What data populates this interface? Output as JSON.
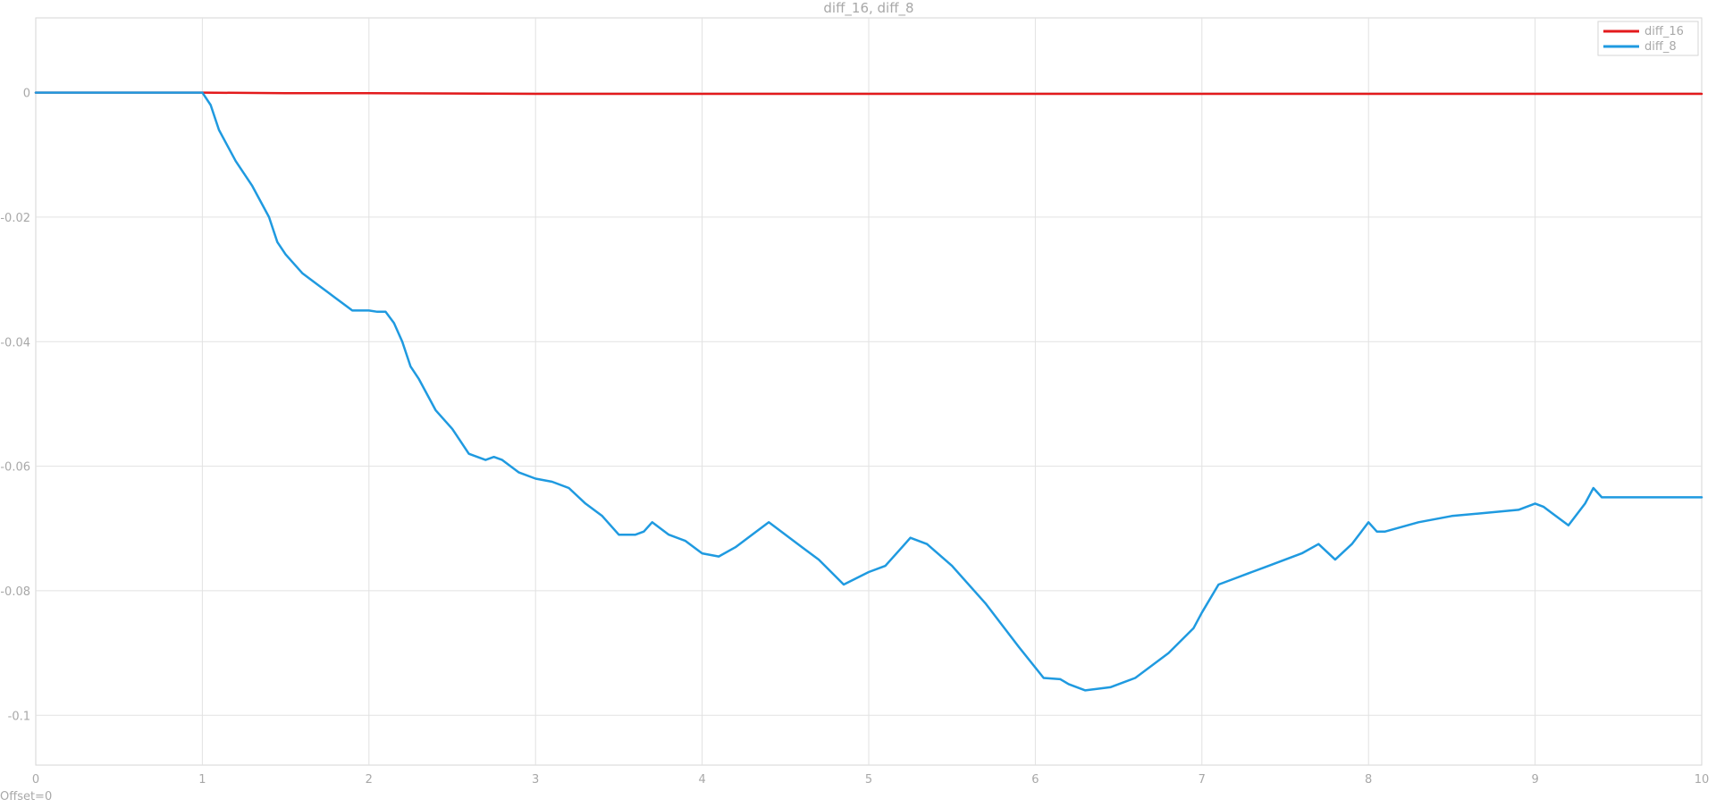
{
  "chart_data": {
    "type": "line",
    "title": "diff_16, diff_8",
    "xlabel": "",
    "ylabel": "",
    "xlim": [
      0,
      10
    ],
    "ylim": [
      -0.108,
      0.012
    ],
    "grid": true,
    "legend_position": "top-right",
    "x_ticks": [
      "0",
      "1",
      "2",
      "3",
      "4",
      "5",
      "6",
      "7",
      "8",
      "9",
      "10"
    ],
    "y_ticks": [
      "0",
      "-0.02",
      "-0.04",
      "-0.06",
      "-0.08",
      "-0.1"
    ],
    "series": [
      {
        "name": "diff_16",
        "color": "#e31a1c",
        "x": [
          0,
          1,
          1.5,
          2,
          3,
          4,
          5,
          6,
          7,
          8,
          9,
          10
        ],
        "y": [
          0,
          0,
          -0.0001,
          -0.0001,
          -0.0002,
          -0.0002,
          -0.0002,
          -0.0002,
          -0.0002,
          -0.0002,
          -0.0002,
          -0.0002
        ]
      },
      {
        "name": "diff_8",
        "color": "#1f9ae0",
        "x": [
          0,
          1,
          1.05,
          1.1,
          1.2,
          1.3,
          1.4,
          1.45,
          1.5,
          1.6,
          1.7,
          1.75,
          1.8,
          1.9,
          2.0,
          2.05,
          2.1,
          2.15,
          2.2,
          2.25,
          2.3,
          2.4,
          2.5,
          2.6,
          2.7,
          2.75,
          2.8,
          2.9,
          3.0,
          3.1,
          3.2,
          3.3,
          3.4,
          3.5,
          3.6,
          3.65,
          3.7,
          3.75,
          3.8,
          3.9,
          4.0,
          4.1,
          4.2,
          4.3,
          4.4,
          4.5,
          4.6,
          4.7,
          4.85,
          5.0,
          5.1,
          5.2,
          5.25,
          5.35,
          5.5,
          5.7,
          5.9,
          6.05,
          6.15,
          6.2,
          6.3,
          6.45,
          6.6,
          6.8,
          6.95,
          7.0,
          7.1,
          7.2,
          7.3,
          7.4,
          7.5,
          7.6,
          7.7,
          7.8,
          7.9,
          8.0,
          8.05,
          8.1,
          8.3,
          8.5,
          8.7,
          8.9,
          9.0,
          9.05,
          9.1,
          9.2,
          9.3,
          9.35,
          9.4,
          9.6,
          9.8,
          10.0
        ],
        "y": [
          0,
          0,
          -0.002,
          -0.006,
          -0.011,
          -0.015,
          -0.02,
          -0.024,
          -0.026,
          -0.029,
          -0.031,
          -0.032,
          -0.033,
          -0.035,
          -0.035,
          -0.0352,
          -0.0352,
          -0.037,
          -0.04,
          -0.044,
          -0.046,
          -0.051,
          -0.054,
          -0.058,
          -0.059,
          -0.0585,
          -0.059,
          -0.061,
          -0.062,
          -0.0625,
          -0.0635,
          -0.066,
          -0.068,
          -0.071,
          -0.071,
          -0.0705,
          -0.069,
          -0.07,
          -0.071,
          -0.072,
          -0.074,
          -0.0745,
          -0.073,
          -0.071,
          -0.069,
          -0.071,
          -0.073,
          -0.075,
          -0.079,
          -0.077,
          -0.076,
          -0.073,
          -0.0715,
          -0.0725,
          -0.076,
          -0.082,
          -0.089,
          -0.094,
          -0.0942,
          -0.095,
          -0.096,
          -0.0955,
          -0.094,
          -0.09,
          -0.086,
          -0.0835,
          -0.079,
          -0.078,
          -0.077,
          -0.076,
          -0.075,
          -0.074,
          -0.0725,
          -0.075,
          -0.0725,
          -0.069,
          -0.0705,
          -0.0705,
          -0.069,
          -0.068,
          -0.0675,
          -0.067,
          -0.066,
          -0.0665,
          -0.0675,
          -0.0695,
          -0.066,
          -0.0635,
          -0.065,
          -0.065,
          -0.065,
          -0.065
        ]
      }
    ]
  },
  "footer": {
    "offset_label": "Offset=0"
  }
}
